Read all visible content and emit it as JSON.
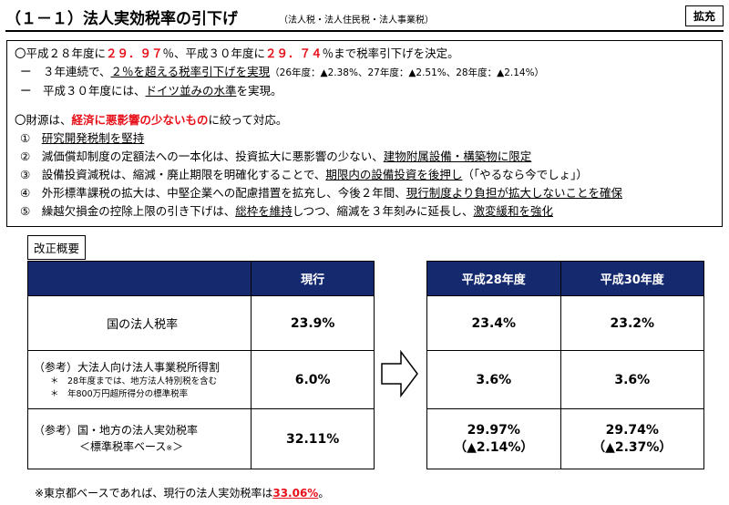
{
  "header": {
    "title": "（１－１）法人実効税率の引下げ",
    "subtitle": "（法人税・法人住民税・法人事業税）",
    "badge": "拡充"
  },
  "summary": {
    "line1": {
      "a": "〇平成２８年度に",
      "b": "２９．９７",
      "c": "％、平成３０年度に",
      "d": "２９．７４",
      "e": "％まで税率引下げを決定。"
    },
    "line2": {
      "a": "ー　３年連続で、",
      "b": "２％を超える",
      "c": "税率引下げを実現",
      "d": "（26年度：▲2.38%、27年度：▲2.51%、28年度：▲2.14%）"
    },
    "line3": {
      "a": "ー　平成３０年度には、",
      "b": "ドイツ並みの水準",
      "c": "を実現。"
    },
    "line4": {
      "a": "〇財源は、",
      "b": "経済に悪影響の少ないもの",
      "c": "に絞って対応。"
    },
    "line5": {
      "a": "①　",
      "b": "研究開発税制を堅持"
    },
    "line6": {
      "a": "②　減価償却制度の定額法への一本化は、投資拡大に悪影響の少ない、",
      "b": "建物附属設備・構築物に限定"
    },
    "line7": {
      "a": "③　設備投資減税は、縮減・廃止期限を明確化することで、",
      "b": "期限内の設備投資を後押し",
      "c": "（「やるなら今でしょ」）"
    },
    "line8": {
      "a": "④　外形標準課税の拡大は、中堅企業への配慮措置を拡充し、今後２年間、",
      "b": "現行制度より負担が拡大しないことを確保"
    },
    "line9": {
      "a": "⑤　繰越欠損金の控除上限の引き下げは、",
      "b": "総枠を維持",
      "c": "しつつ、縮減を３年刻みに延長し、",
      "d": "激変緩和を強化"
    }
  },
  "overview_label": "改正概要",
  "table": {
    "col_current": "現行",
    "col_h28": "平成28年度",
    "col_h30": "平成30年度",
    "rows": [
      {
        "label": "国の法人税率",
        "current": "23.9%",
        "h28": "23.4%",
        "h30": "23.2%"
      },
      {
        "label": "（参考）大法人向け法人事業税所得割",
        "note1": "＊　28年度までは、地方法人特別税を含む",
        "note2": "＊　年800万円超所得分の標準税率",
        "current": "6.0%",
        "h28": "3.6%",
        "h30": "3.6%"
      },
      {
        "label": "（参考）国・地方の法人実効税率",
        "label2": "＜標準税率ベース",
        "label2_mark": "※",
        "label2_end": "＞",
        "current": "32.11%",
        "h28": "29.97%",
        "h28_diff": "（▲2.14%）",
        "h30": "29.74%",
        "h30_diff": "（▲2.37%）"
      }
    ]
  },
  "footer": {
    "a": "※東京都ベースであれば、現行の法人実効税率は",
    "b": "33.06%",
    "c": "。"
  },
  "colors": {
    "header_bg": "#15296e",
    "accent_red": "#e8101a"
  }
}
